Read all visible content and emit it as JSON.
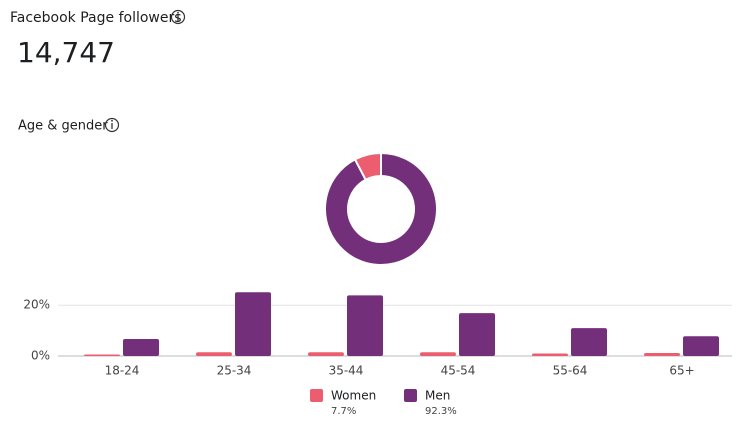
{
  "header": {
    "title": "Facebook Page followers",
    "value": "14,747"
  },
  "section_title": "Age & gender",
  "chart_data": [
    {
      "type": "pie",
      "donut": true,
      "values": [
        7.7,
        92.3
      ],
      "value_labels": [
        "7.7%",
        "92.3%"
      ],
      "colors": [
        "#ec5e6f",
        "#742f7b"
      ]
    },
    {
      "type": "bar",
      "categories": [
        "18-24",
        "25-34",
        "35-44",
        "45-54",
        "55-64",
        "65+"
      ],
      "series": [
        {
          "name": "Women",
          "color": "#ec5e6f",
          "values": [
            0.6,
            1.5,
            1.5,
            1.5,
            1.0,
            1.2
          ]
        },
        {
          "name": "Men",
          "color": "#742f7b",
          "values": [
            6.7,
            25.1,
            23.9,
            16.9,
            11.0,
            7.8
          ]
        }
      ],
      "ylim": [
        0,
        26
      ],
      "yticks": [
        {
          "value": 0,
          "label": "0%"
        },
        {
          "value": 20,
          "label": "20%"
        }
      ],
      "grid": true
    }
  ]
}
